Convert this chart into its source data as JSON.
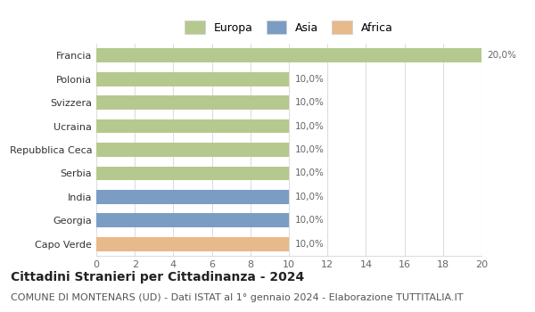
{
  "countries": [
    "Francia",
    "Polonia",
    "Svizzera",
    "Ucraina",
    "Repubblica Ceca",
    "Serbia",
    "India",
    "Georgia",
    "Capo Verde"
  ],
  "values": [
    20,
    10,
    10,
    10,
    10,
    10,
    10,
    10,
    10
  ],
  "percentages": [
    "20,0%",
    "10,0%",
    "10,0%",
    "10,0%",
    "10,0%",
    "10,0%",
    "10,0%",
    "10,0%",
    "10,0%"
  ],
  "continents": [
    "Europa",
    "Europa",
    "Europa",
    "Europa",
    "Europa",
    "Europa",
    "Asia",
    "Asia",
    "Africa"
  ],
  "colors": {
    "Europa": "#b5c98e",
    "Asia": "#7b9dc4",
    "Africa": "#e8b98a"
  },
  "legend": [
    "Europa",
    "Asia",
    "Africa"
  ],
  "legend_colors": [
    "#b5c98e",
    "#7b9dc4",
    "#e8b98a"
  ],
  "xlim": [
    0,
    20
  ],
  "xticks": [
    0,
    2,
    4,
    6,
    8,
    10,
    12,
    14,
    16,
    18,
    20
  ],
  "title": "Cittadini Stranieri per Cittadinanza - 2024",
  "subtitle": "COMUNE DI MONTENARS (UD) - Dati ISTAT al 1° gennaio 2024 - Elaborazione TUTTITALIA.IT",
  "title_fontsize": 10,
  "subtitle_fontsize": 8,
  "bg_color": "#ffffff",
  "grid_color": "#dddddd",
  "bar_height": 0.6
}
